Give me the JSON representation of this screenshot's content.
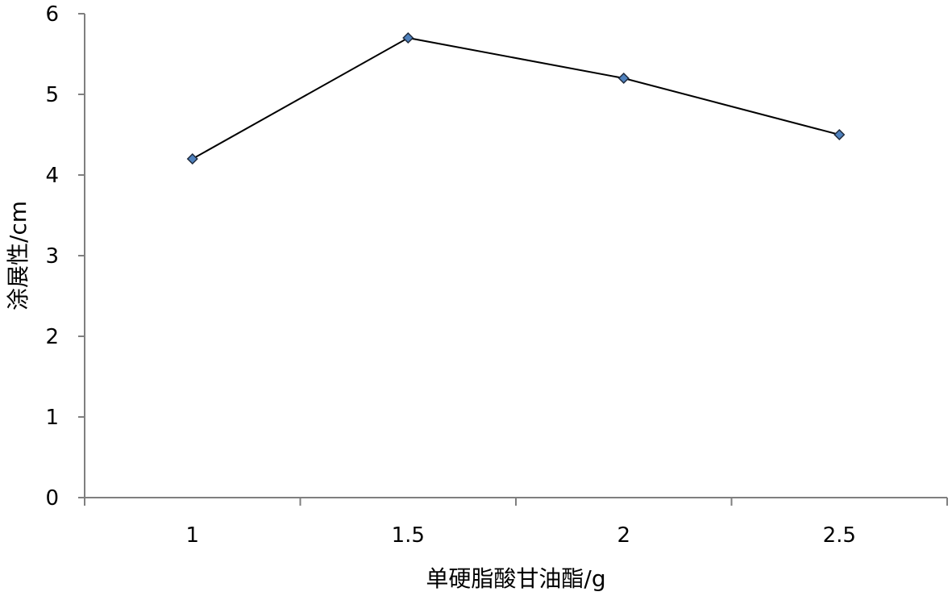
{
  "chart_data": {
    "type": "line",
    "categories": [
      "1",
      "1.5",
      "2",
      "2.5"
    ],
    "series": [
      {
        "values": [
          4.2,
          5.7,
          5.2,
          4.5
        ],
        "marker": "diamond",
        "marker_color": "#4F81BD",
        "line_color": "#000000"
      }
    ],
    "xlabel": "单硬脂酸甘油酯/g",
    "ylabel": "涂展性/cm",
    "ylim": [
      0,
      6
    ],
    "yticks": [
      "0",
      "1",
      "2",
      "3",
      "4",
      "5",
      "6"
    ],
    "grid": false,
    "legend": "none",
    "axis_color": "#7f7f7f"
  }
}
